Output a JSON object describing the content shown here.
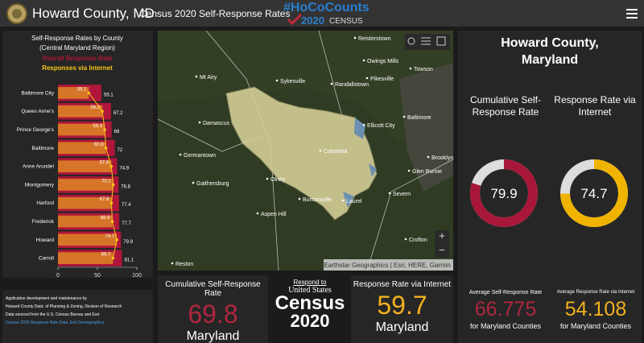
{
  "header": {
    "title": "Howard County, MD",
    "subtitle": "Census 2020 Self-Response Rates",
    "logo_hashtag": "#HoCoCounts",
    "logo_year": "2020",
    "logo_census": "CENSUS"
  },
  "chart_data": {
    "type": "bar",
    "orientation": "horizontal",
    "title": "Self-Response Rates by County",
    "subtitle": "(Central Maryland Region)",
    "categories": [
      "Baltimore City",
      "Queen Anne's",
      "Prince George's",
      "Baltimore",
      "Anne Arundel",
      "Montgomery",
      "Harford",
      "Frederick",
      "Howard",
      "Carroll"
    ],
    "series": [
      {
        "name": "Overall Response Rate",
        "color": "#b0163a",
        "values": [
          55.1,
          67.2,
          68,
          72,
          74.9,
          76.8,
          77.4,
          77.7,
          79.9,
          81.1
        ]
      },
      {
        "name": "Responses via Internet",
        "color": "#f5c518",
        "values": [
          39.1,
          56.2,
          59.3,
          60.8,
          67.6,
          70.1,
          67.8,
          68.9,
          74.7,
          69.7
        ]
      }
    ],
    "xlim": [
      0,
      100
    ],
    "xticks": [
      0,
      50,
      100
    ]
  },
  "map": {
    "places": [
      "Reisterstown",
      "Owings Mills",
      "Towson",
      "Mt Airy",
      "Sykesville",
      "Randallstown",
      "Pikesville",
      "Baltimore",
      "Ellicott City",
      "Damascus",
      "Columbia",
      "Germantown",
      "Olney",
      "Gaithersburg",
      "Burtonsville",
      "Severn",
      "Glen Burnie",
      "Aspen Hill",
      "Crofton",
      "Reston",
      "Laurel",
      "Brooklyn Park"
    ],
    "zoom_in": "+",
    "zoom_out": "−",
    "attribution": "Earthstar Geographics | Esri, HERE, Garmin"
  },
  "county_panel": {
    "title": "Howard County, Maryland",
    "gauges": [
      {
        "label": "Cumulative Self-Response Rate",
        "value": 79.9,
        "color": "#a8173a"
      },
      {
        "label": "Response Rate via Internet",
        "value": 74.7,
        "color": "#f0b400"
      }
    ]
  },
  "notes": [
    "Application development and maintenance by",
    "Howard County Dept. of Planning & Zoning, Division of Research",
    "Data sourced from the U.S. Census Bureau and Esri:",
    "Census 2020 Response Rate Data, Esri Demographics"
  ],
  "state_stats": [
    {
      "label": "Cumulative Self-Response Rate",
      "value": 69.8,
      "sublabel": "Maryland",
      "color": "#b0263f"
    },
    {
      "label": "Response Rate via Internet",
      "value": 59.7,
      "sublabel": "Maryland",
      "color": "#f2b01e"
    }
  ],
  "census_logo": {
    "line1": "Respond to",
    "line2": "United States",
    "line3": "Census",
    "line4": "2020"
  },
  "averages": [
    {
      "label": "Average Self-Response Rate",
      "value": 66.775,
      "sublabel": "for Maryland Counties",
      "color": "#b0263f"
    },
    {
      "label": "Average Response Rate via Internet",
      "value": 54.108,
      "sublabel": "for Maryland Counties",
      "color": "#f2b01e"
    }
  ]
}
